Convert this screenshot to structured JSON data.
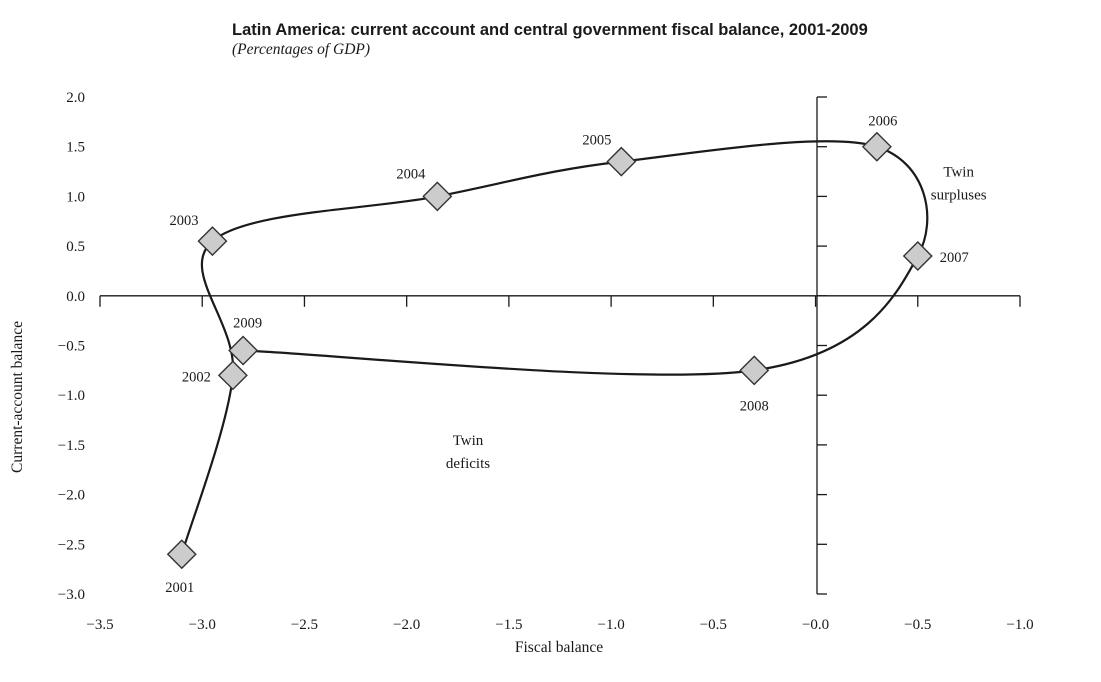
{
  "chart_data": {
    "type": "scatter",
    "title": "Latin America: current account and central government fiscal balance, 2001-2009",
    "subtitle": "(Percentages of GDP)",
    "xlabel": "Fiscal balance",
    "ylabel": "Current-account balance",
    "xlim": [
      -3.5,
      1.0
    ],
    "ylim": [
      -3.0,
      2.0
    ],
    "x_tick_labels": [
      "−3.5",
      "−3.0",
      "−2.5",
      "−2.0",
      "−1.5",
      "−1.0",
      "−0.5",
      "−0.0",
      "−0.5",
      "−1.0"
    ],
    "y_tick_labels": [
      "2.0",
      "1.5",
      "1.0",
      "0.5",
      "0.0",
      "−0.5",
      "−1.0",
      "−1.5",
      "−2.0",
      "−2.5",
      "−3.0"
    ],
    "grid": false,
    "connected": true,
    "points": [
      {
        "year": "2001",
        "x": -3.1,
        "y": -2.6
      },
      {
        "year": "2002",
        "x": -2.85,
        "y": -0.8
      },
      {
        "year": "2003",
        "x": -2.95,
        "y": 0.55
      },
      {
        "year": "2004",
        "x": -1.85,
        "y": 1.0
      },
      {
        "year": "2005",
        "x": -0.95,
        "y": 1.35
      },
      {
        "year": "2006",
        "x": 0.3,
        "y": 1.5
      },
      {
        "year": "2007",
        "x": 0.5,
        "y": 0.4
      },
      {
        "year": "2008",
        "x": -0.3,
        "y": -0.75
      },
      {
        "year": "2009",
        "x": -2.8,
        "y": -0.55
      }
    ],
    "annotations": [
      {
        "text_lines": [
          "Twin",
          "surpluses"
        ],
        "x": 0.7,
        "y": 1.2
      },
      {
        "text_lines": [
          "Twin",
          "deficits"
        ],
        "x": -1.7,
        "y": -1.5
      }
    ],
    "colors": {
      "marker_fill": "#cccccc",
      "marker_stroke": "#333333",
      "line": "#1a1a1a",
      "axis": "#1a1a1a"
    }
  }
}
